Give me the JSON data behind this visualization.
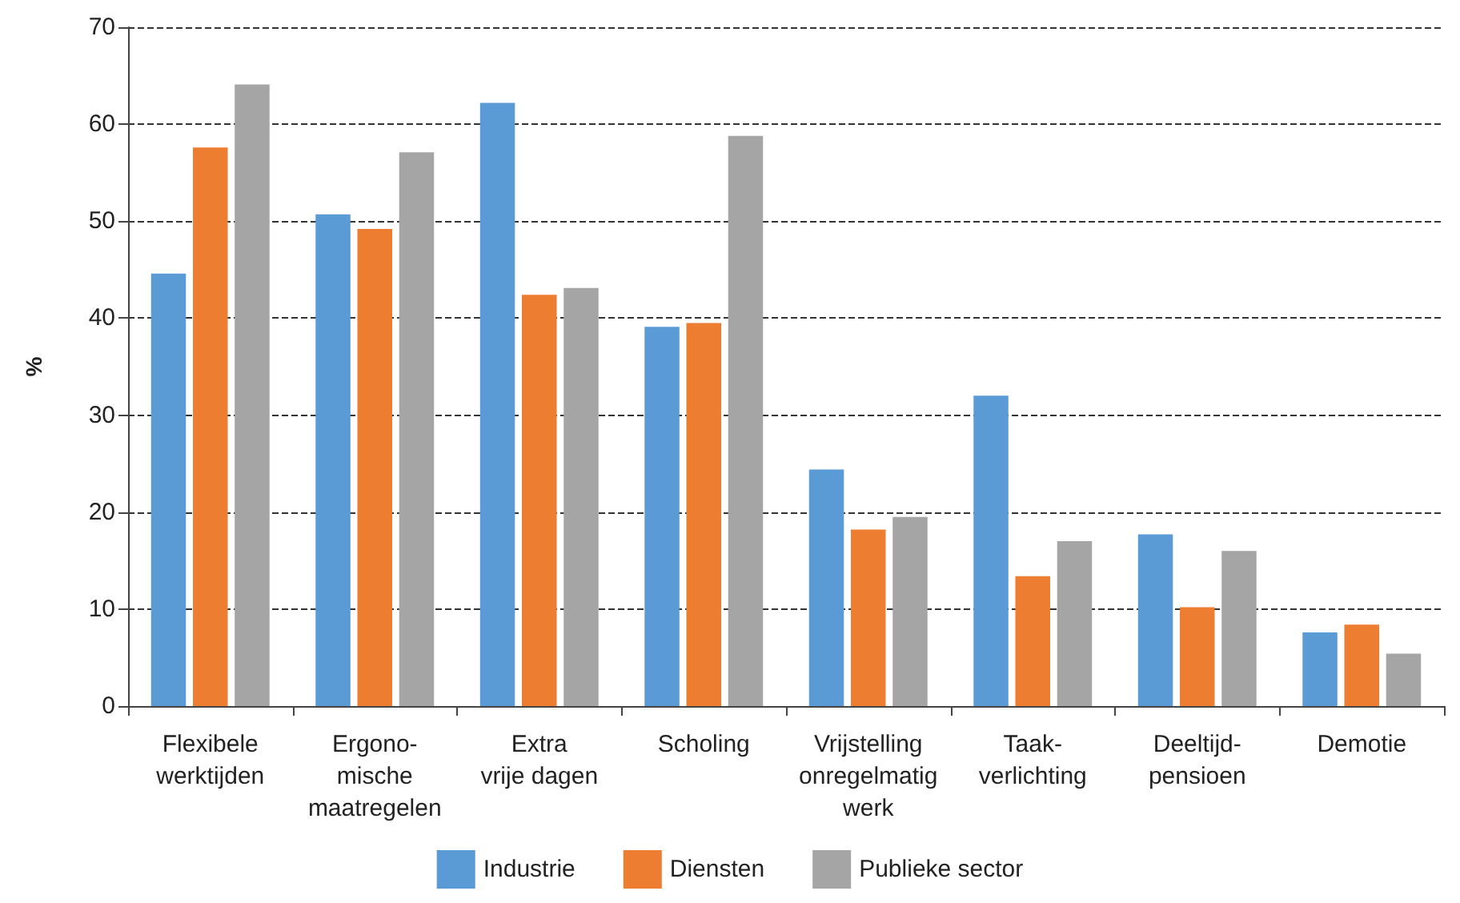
{
  "chart_data": {
    "type": "bar",
    "ylabel": "%",
    "categories": [
      "Flexibele\nwerktijden",
      "Ergono-\nmische\nmaatregelen",
      "Extra\nvrije dagen",
      "Scholing",
      "Vrijstelling\nonregelmatig\nwerk",
      "Taak-\nverlichting",
      "Deeltijd-\npensioen",
      "Demotie"
    ],
    "series": [
      {
        "name": "Industrie",
        "color": "#5b9bd5",
        "values": [
          44.6,
          50.7,
          62.2,
          39.1,
          24.4,
          32.0,
          17.7,
          7.6
        ]
      },
      {
        "name": "Diensten",
        "color": "#ed7d31",
        "values": [
          57.6,
          49.2,
          42.4,
          39.5,
          18.2,
          13.4,
          10.2,
          8.4
        ]
      },
      {
        "name": "Publieke sector",
        "color": "#a5a5a5",
        "values": [
          64.1,
          57.1,
          43.1,
          58.8,
          19.5,
          17.0,
          16.0,
          5.4
        ]
      }
    ],
    "ylim": [
      0,
      70
    ],
    "yticks": [
      0,
      10,
      20,
      30,
      40,
      50,
      60,
      70
    ],
    "grid": "y",
    "legend": "bottom"
  }
}
